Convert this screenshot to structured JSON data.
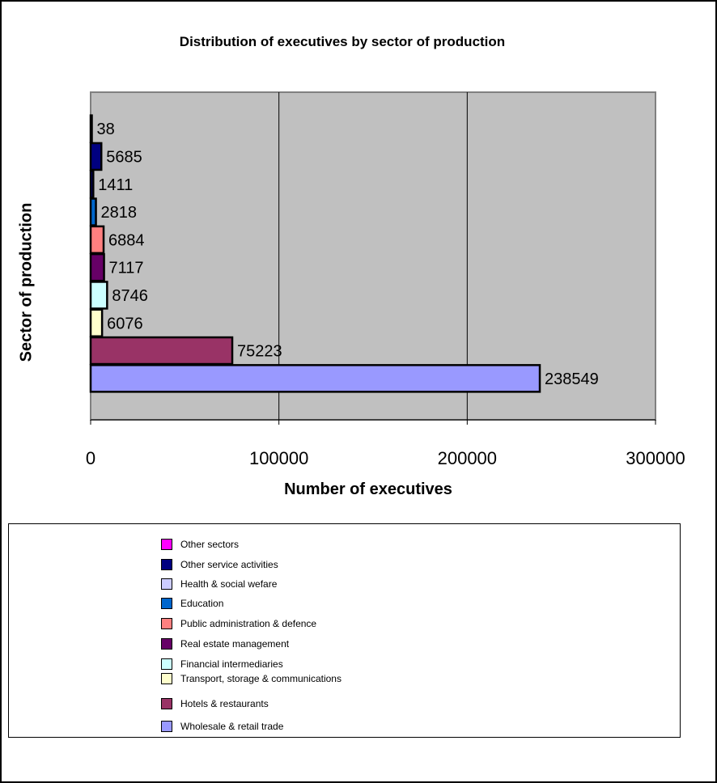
{
  "chart_data": {
    "type": "bar",
    "orientation": "horizontal",
    "title": "Distribution of executives by sector of production",
    "xlabel": "Number of executives",
    "ylabel": "Sector of production",
    "xlim": [
      0,
      300000
    ],
    "xticks": [
      "0",
      "100000",
      "200000",
      "300000"
    ],
    "grid": true,
    "legend_position": "bottom",
    "plot_background": "#c0c0c0",
    "categories": [
      "Other sectors",
      "Other service activities",
      "Health & social wefare",
      "Education",
      "Public administration & defence",
      "Real estate management",
      "Financial intermediaries",
      "Transport, storage & communications",
      "Hotels & restaurants",
      "Wholesale & retail trade"
    ],
    "values": [
      38,
      5685,
      1411,
      2818,
      6884,
      7117,
      8746,
      6076,
      75223,
      238549
    ],
    "value_labels": [
      "38",
      "5685",
      "1411",
      "2818",
      "6884",
      "7117",
      "8746",
      "6076",
      "75223",
      "238549"
    ],
    "colors": [
      "#ff00ff",
      "#000080",
      "#ccccff",
      "#0066cc",
      "#ff8080",
      "#660066",
      "#ccffff",
      "#ffffcc",
      "#993366",
      "#9999ff"
    ],
    "bar_colors_in_chart": [
      "#ff00ff",
      "#000080",
      "#000080",
      "#0066cc",
      "#ff8080",
      "#660066",
      "#ccffff",
      "#ffffcc",
      "#993366",
      "#9999ff"
    ]
  }
}
